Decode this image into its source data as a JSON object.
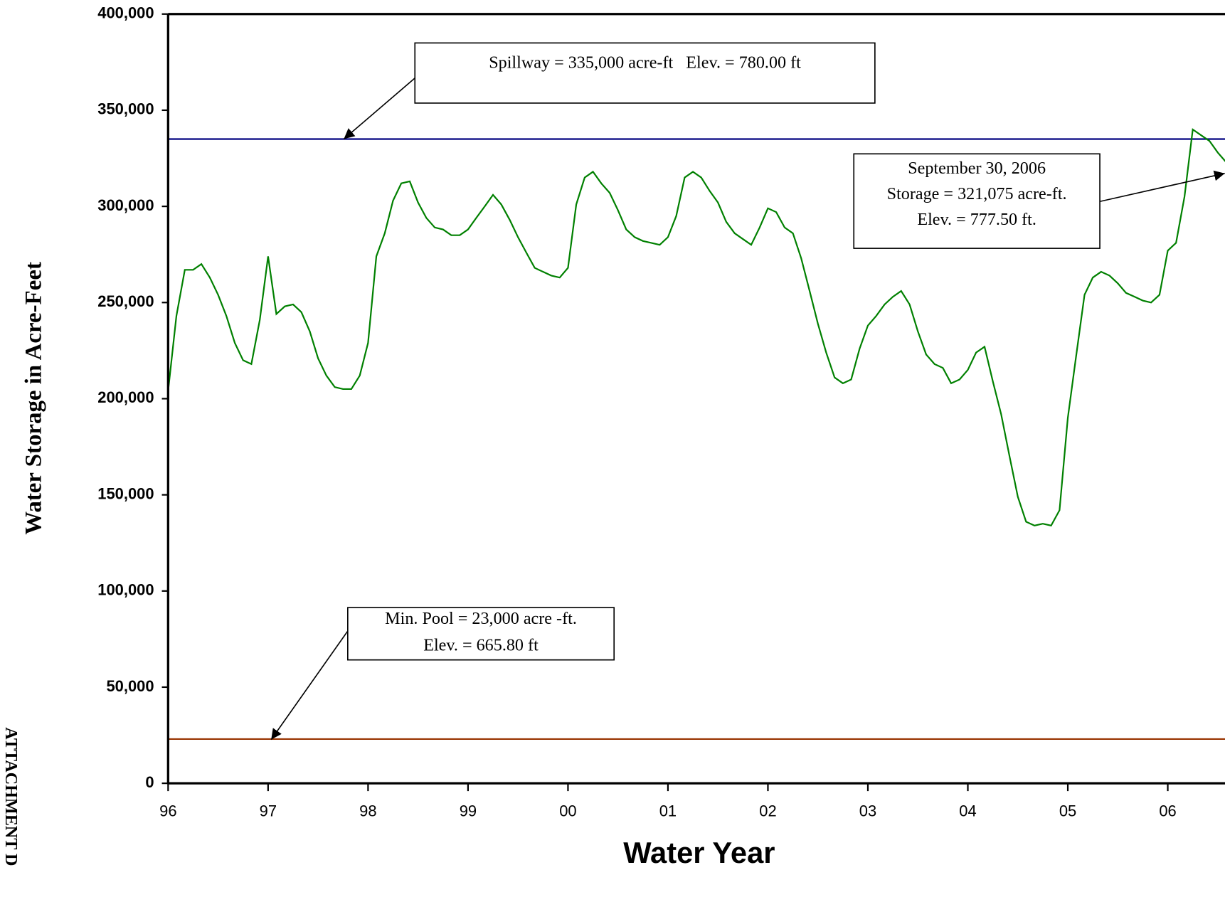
{
  "chart_data": {
    "type": "line",
    "y_label": "Water Storage in Acre-Feet",
    "x_label": "Water Year",
    "side_label": "ATTACHMENT D",
    "xlim": [
      1996,
      2007
    ],
    "xticks": [
      {
        "value": 1996,
        "label": "96"
      },
      {
        "value": 1997,
        "label": "97"
      },
      {
        "value": 1998,
        "label": "98"
      },
      {
        "value": 1999,
        "label": "99"
      },
      {
        "value": 2000,
        "label": "00"
      },
      {
        "value": 2001,
        "label": "01"
      },
      {
        "value": 2002,
        "label": "02"
      },
      {
        "value": 2003,
        "label": "03"
      },
      {
        "value": 2004,
        "label": "04"
      },
      {
        "value": 2005,
        "label": "05"
      },
      {
        "value": 2006,
        "label": "06"
      }
    ],
    "ylim": [
      0,
      400000
    ],
    "yticks": [
      0,
      {
        "value": 50000,
        "label": "50,000"
      },
      {
        "value": 100000,
        "label": "100,000"
      },
      {
        "value": 150000,
        "label": "150,000"
      },
      {
        "value": 200000,
        "label": "200,000"
      },
      {
        "value": 250000,
        "label": "250,000"
      },
      {
        "value": 300000,
        "label": "300,000"
      },
      {
        "value": 350000,
        "label": "350,000"
      },
      {
        "value": 400000,
        "label": "400,000"
      }
    ],
    "x": [
      1996,
      1996.083,
      1996.167,
      1996.25,
      1996.333,
      1996.417,
      1996.5,
      1996.583,
      1996.667,
      1996.75,
      1996.833,
      1996.917,
      1997,
      1997.083,
      1997.167,
      1997.25,
      1997.333,
      1997.417,
      1997.5,
      1997.583,
      1997.667,
      1997.75,
      1997.833,
      1997.917,
      1998,
      1998.083,
      1998.167,
      1998.25,
      1998.333,
      1998.417,
      1998.5,
      1998.583,
      1998.667,
      1998.75,
      1998.833,
      1998.917,
      1999,
      1999.083,
      1999.167,
      1999.25,
      1999.333,
      1999.417,
      1999.5,
      1999.583,
      1999.667,
      1999.75,
      1999.833,
      1999.917,
      2000,
      2000.083,
      2000.167,
      2000.25,
      2000.333,
      2000.417,
      2000.5,
      2000.583,
      2000.667,
      2000.75,
      2000.833,
      2000.917,
      2001,
      2001.083,
      2001.167,
      2001.25,
      2001.333,
      2001.417,
      2001.5,
      2001.583,
      2001.667,
      2001.75,
      2001.833,
      2001.917,
      2002,
      2002.083,
      2002.167,
      2002.25,
      2002.333,
      2002.417,
      2002.5,
      2002.583,
      2002.667,
      2002.75,
      2002.833,
      2002.917,
      2003,
      2003.083,
      2003.167,
      2003.25,
      2003.333,
      2003.417,
      2003.5,
      2003.583,
      2003.667,
      2003.75,
      2003.833,
      2003.917,
      2004,
      2004.083,
      2004.167,
      2004.25,
      2004.333,
      2004.417,
      2004.5,
      2004.583,
      2004.667,
      2004.75,
      2004.833,
      2004.917,
      2005,
      2005.083,
      2005.167,
      2005.25,
      2005.333,
      2005.417,
      2005.5,
      2005.583,
      2005.667,
      2005.75,
      2005.833,
      2005.917,
      2006,
      2006.083,
      2006.167,
      2006.25,
      2006.333,
      2006.417,
      2006.5,
      2006.583,
      2006.667
    ],
    "series": [
      {
        "name": "Storage",
        "color": "#008000",
        "values": [
          204000,
          243000,
          267000,
          267000,
          270000,
          263000,
          254000,
          243000,
          229000,
          220000,
          218000,
          241000,
          274000,
          244000,
          248000,
          249000,
          245000,
          235000,
          221000,
          212000,
          206000,
          205000,
          205000,
          212000,
          229000,
          274000,
          286000,
          303000,
          312000,
          313000,
          302000,
          294000,
          289000,
          288000,
          285000,
          285000,
          288000,
          294000,
          300000,
          306000,
          301000,
          293000,
          284000,
          276000,
          268000,
          266000,
          264000,
          263000,
          268000,
          301000,
          315000,
          318000,
          312000,
          307000,
          298000,
          288000,
          284000,
          282000,
          281000,
          280000,
          284000,
          295000,
          315000,
          318000,
          315000,
          308000,
          302000,
          292000,
          286000,
          283000,
          280000,
          289000,
          299000,
          297000,
          289000,
          286000,
          273000,
          256000,
          239000,
          224000,
          211000,
          208000,
          210000,
          226000,
          238000,
          243000,
          249000,
          253000,
          256000,
          249000,
          235000,
          223000,
          218000,
          216000,
          208000,
          210000,
          215000,
          224000,
          227000,
          209000,
          192000,
          170000,
          149000,
          136000,
          134000,
          135000,
          134000,
          142000,
          190000,
          222000,
          254000,
          263000,
          266000,
          264000,
          260000,
          255000,
          253000,
          251000,
          250000,
          254000,
          277000,
          281000,
          305000,
          340000,
          337000,
          334000,
          328000,
          323000,
          321075
        ]
      }
    ],
    "reference_lines": [
      {
        "value": 335000,
        "color": "#000080",
        "label": "Spillway = 335,000 acre-ft   Elev. = 780.00 ft"
      },
      {
        "value": 23000,
        "color": "#993300",
        "label": [
          "Min. Pool = 23,000 acre -ft.",
          "Elev. = 665.80 ft"
        ]
      }
    ],
    "annotation": [
      "September 30, 2006",
      "Storage = 321,075 acre-ft.",
      "Elev. = 777.50 ft."
    ]
  }
}
